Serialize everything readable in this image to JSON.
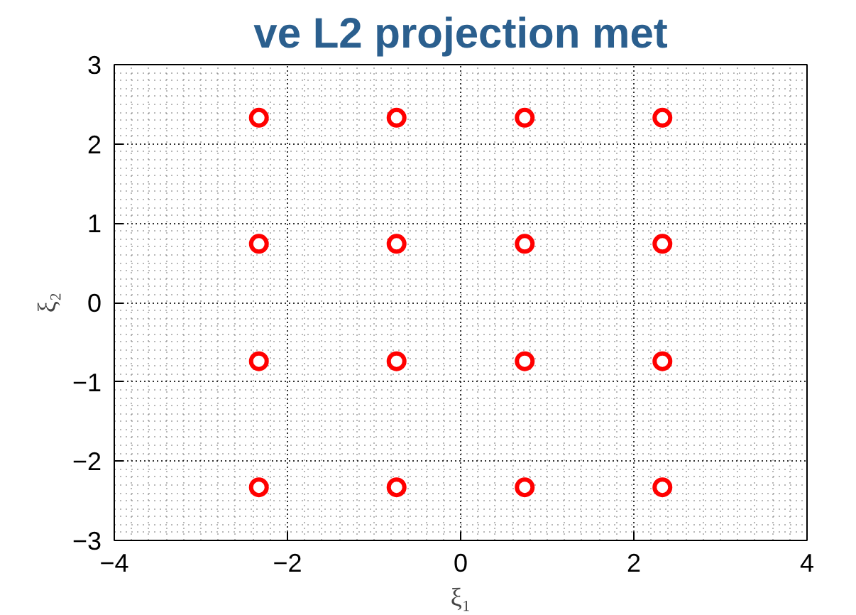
{
  "chart_data": {
    "type": "scatter",
    "title": "ve L2 projection met",
    "xlabel": "ξ₁",
    "ylabel": "ξ₂",
    "series": [
      {
        "color": "#ff0000",
        "x": [
          -2.33,
          -0.74,
          0.74,
          2.33,
          -2.33,
          -0.74,
          0.74,
          2.33,
          -2.33,
          -0.74,
          0.74,
          2.33,
          -2.33,
          -0.74,
          0.74,
          2.33
        ],
        "values": [
          2.33,
          2.33,
          2.33,
          2.33,
          0.74,
          0.74,
          0.74,
          0.74,
          -0.74,
          -0.74,
          -0.74,
          -0.74,
          -2.33,
          -2.33,
          -2.33,
          -2.33
        ]
      }
    ],
    "xlim": [
      -4,
      4
    ],
    "ylim": [
      -3,
      3
    ],
    "xticks": [
      -4,
      -2,
      0,
      2,
      4
    ],
    "yticks": [
      -3,
      -2,
      -1,
      0,
      1,
      2,
      3
    ],
    "grid": true,
    "marker": "circle"
  }
}
